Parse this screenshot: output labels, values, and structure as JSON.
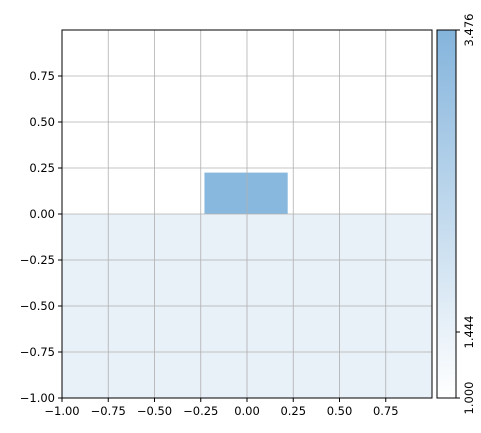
{
  "chart_data": [
    {
      "type": "heatmap",
      "title": "",
      "xlabel": "",
      "ylabel": "",
      "xlim": [
        -1.0,
        1.0
      ],
      "ylim": [
        -1.0,
        1.0
      ],
      "grid": true,
      "x_ticks": [
        "−1.00",
        "−0.75",
        "−0.50",
        "−0.25",
        "0.00",
        "0.25",
        "0.50",
        "0.75"
      ],
      "x_tick_values": [
        -1.0,
        -0.75,
        -0.5,
        -0.25,
        0.0,
        0.25,
        0.5,
        0.75
      ],
      "y_ticks": [
        "−1.00",
        "−0.75",
        "−0.50",
        "−0.25",
        "0.00",
        "0.25",
        "0.50",
        "0.75"
      ],
      "y_tick_values": [
        -1.0,
        -0.75,
        -0.5,
        -0.25,
        0.0,
        0.25,
        0.5,
        0.75
      ],
      "cells": [
        {
          "x0": -1.0,
          "x1": 1.0,
          "y0": -1.0,
          "y1": 0.0,
          "value": 1.444,
          "color": "#e8f0f8"
        },
        {
          "x0": -0.23,
          "x1": 0.22,
          "y0": 0.0,
          "y1": 0.225,
          "value": 3.476,
          "color": "#88b8de"
        }
      ]
    },
    {
      "type": "colorbar",
      "orientation": "vertical",
      "range": [
        1.0,
        3.476
      ],
      "ticks": [
        "1.000",
        "1.444",
        "3.476"
      ],
      "tick_values": [
        1.0,
        1.444,
        3.476
      ],
      "color_low": "#ffffff",
      "color_high": "#84b4dc"
    }
  ]
}
